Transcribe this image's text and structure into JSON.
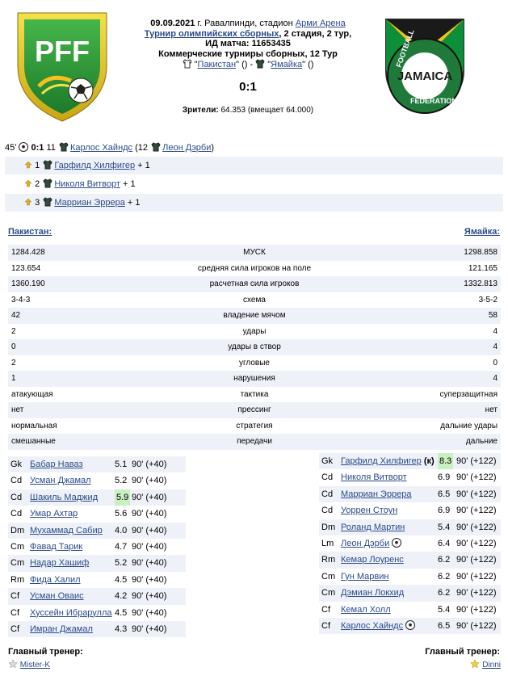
{
  "header": {
    "date": "09.09.2021",
    "city_prefix": " г. Равалпинди, стадион ",
    "stadium": "Арми Арена",
    "tournament": "Турнир олимпийских сборных",
    "stage": ", 2 стадия, 2 тур,",
    "match_id": "ИД матча: 11653435",
    "commercial": "Коммерческие турниры сборных, 12 Тур",
    "home_team": "Пакистан",
    "away_team": "Ямайка",
    "home_suffix": " () - ",
    "away_suffix": " ()",
    "score": "0:1",
    "spectators_label": "Зрители:",
    "spectators_value": " 64.353 (вмещает 64.000)"
  },
  "logos": {
    "left_text": "PFF",
    "right_top": "FOOTBALL",
    "right_mid": "JAMAICA",
    "right_bottom": "FEDERATION"
  },
  "goal": {
    "minute": "45'",
    "score": "0:1",
    "num": "11",
    "scorer": "Карлос Хайндс",
    "assist_num": "(12",
    "assist": "Леон Дэрби",
    "close": ")"
  },
  "goal_extras": [
    {
      "num": "1",
      "name": "Гарфилд Хилфигер",
      "plus": "+ 1"
    },
    {
      "num": "2",
      "name": "Николя Витворт",
      "plus": "+ 1"
    },
    {
      "num": "3",
      "name": "Марриан Эррера",
      "plus": "+ 1"
    }
  ],
  "teams": {
    "left": "Пакистан:",
    "right": "Ямайка:"
  },
  "stats": [
    {
      "l": "1284.428",
      "c": "МУСК",
      "r": "1298.858"
    },
    {
      "l": "123.654",
      "c": "средняя сила игроков на поле",
      "r": "121.165"
    },
    {
      "l": "1360.190",
      "c": "расчетная сила игроков",
      "r": "1332.813"
    },
    {
      "l": "3-4-3",
      "c": "схема",
      "r": "3-5-2"
    },
    {
      "l": "42",
      "c": "владение мячом",
      "r": "58"
    },
    {
      "l": "2",
      "c": "удары",
      "r": "4"
    },
    {
      "l": "0",
      "c": "удары в створ",
      "r": "4"
    },
    {
      "l": "2",
      "c": "угловые",
      "r": "0"
    },
    {
      "l": "1",
      "c": "нарушения",
      "r": "4"
    },
    {
      "l": "атакующая",
      "c": "тактика",
      "r": "суперзащитная"
    },
    {
      "l": "нет",
      "c": "прессинг",
      "r": "нет"
    },
    {
      "l": "нормальная",
      "c": "стратегия",
      "r": "дальние удары"
    },
    {
      "l": "смешанные",
      "c": "передачи",
      "r": "дальние"
    }
  ],
  "home_lineup": [
    {
      "pos": "Gk",
      "name": "Бабар Наваз",
      "rating": "5.1",
      "mins": "90' (+40)"
    },
    {
      "pos": "Cd",
      "name": "Усман Джамал",
      "rating": "5.2",
      "mins": "90' (+40)"
    },
    {
      "pos": "Cd",
      "name": "Шакиль Маджид",
      "rating": "5.9",
      "mins": "90' (+40)"
    },
    {
      "pos": "Cd",
      "name": "Умар Ахтар",
      "rating": "5.6",
      "mins": "90' (+40)"
    },
    {
      "pos": "Dm",
      "name": "Мухаммад Сабир",
      "rating": "4.0",
      "mins": "90' (+40)"
    },
    {
      "pos": "Cm",
      "name": "Фавад Тарик",
      "rating": "4.7",
      "mins": "90' (+40)"
    },
    {
      "pos": "Cm",
      "name": "Надар Хашиф",
      "rating": "5.2",
      "mins": "90' (+40)"
    },
    {
      "pos": "Rm",
      "name": "Фида Халил",
      "rating": "4.5",
      "mins": "90' (+40)"
    },
    {
      "pos": "Cf",
      "name": "Усман Оваис",
      "rating": "4.2",
      "mins": "90' (+40)"
    },
    {
      "pos": "Cf",
      "name": "Хуссейн Ибрарулла",
      "rating": "4.5",
      "mins": "90' (+40)"
    },
    {
      "pos": "Cf",
      "name": "Имран Джамал",
      "rating": "4.3",
      "mins": "90' (+40)"
    }
  ],
  "away_lineup": [
    {
      "pos": "Gk",
      "name": "Гарфилд Хилфигер",
      "extra": " (к)",
      "rating": "8.3",
      "mins": "90' (+122)"
    },
    {
      "pos": "Cd",
      "name": "Николя Витворт",
      "rating": "6.9",
      "mins": "90' (+122)"
    },
    {
      "pos": "Cd",
      "name": "Марриан Эррера",
      "rating": "6.5",
      "mins": "90' (+122)"
    },
    {
      "pos": "Cd",
      "name": "Уоррен Стоун",
      "rating": "6.9",
      "mins": "90' (+122)"
    },
    {
      "pos": "Dm",
      "name": "Роланд Мартин",
      "rating": "5.4",
      "mins": "90' (+122)"
    },
    {
      "pos": "Lm",
      "name": "Леон Дэрби",
      "rating": "6.4",
      "mins": "90' (+122)"
    },
    {
      "pos": "Rm",
      "name": "Кемар Лоуренс",
      "rating": "6.2",
      "mins": "90' (+122)"
    },
    {
      "pos": "Cm",
      "name": "Гун Марвин",
      "rating": "6.2",
      "mins": "90' (+122)"
    },
    {
      "pos": "Cm",
      "name": "Дэмиан Локхид",
      "rating": "6.2",
      "mins": "90' (+122)"
    },
    {
      "pos": "Cf",
      "name": "Кемал Холл",
      "rating": "5.4",
      "mins": "90' (+122)"
    },
    {
      "pos": "Cf",
      "name": "Карлос Хайндс",
      "rating": "6.5",
      "mins": "90' (+122)"
    }
  ],
  "coaches": {
    "label": "Главный тренер:",
    "home": "Mister-K",
    "away": "Dinni"
  },
  "colors": {
    "row_alt": "#eef2f8",
    "link": "#2a4a8a",
    "rating_hl": "#c8f0c0"
  }
}
